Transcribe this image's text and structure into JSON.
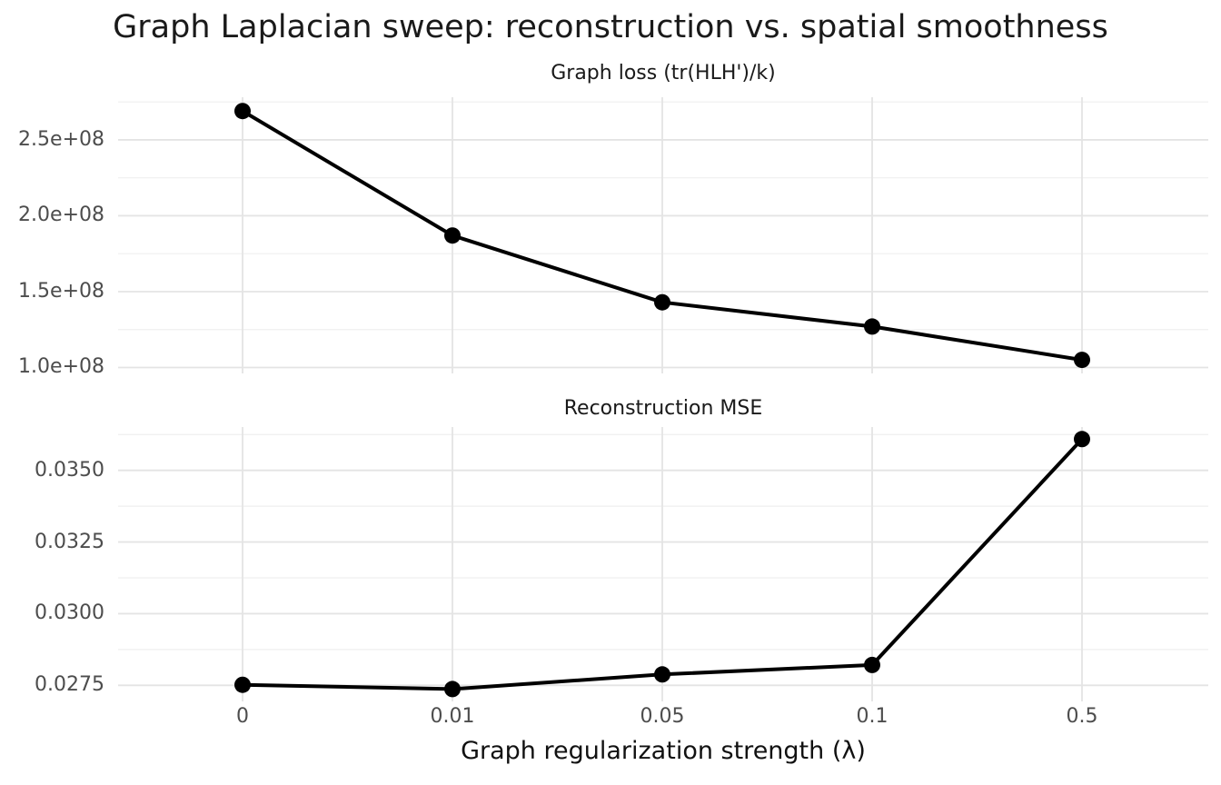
{
  "title": "Graph Laplacian sweep: reconstruction vs. spatial smoothness",
  "x_axis": {
    "title": "Graph regularization strength (λ)",
    "tick_labels": [
      "0",
      "0.01",
      "0.05",
      "0.1",
      "0.5"
    ]
  },
  "style": {
    "line_color": "#000000",
    "point_color": "#000000",
    "grid_major_color": "#e4e4e4",
    "grid_minor_color": "#efefef",
    "tick_text_color": "#4d4d4d",
    "title_text_color": "#1a1a1a",
    "background": "#ffffff"
  },
  "chart_data": [
    {
      "type": "line",
      "panel_title": "Graph loss (tr(HLH')/k)",
      "xlabel": "Graph regularization strength (λ)",
      "categories": [
        "0",
        "0.01",
        "0.05",
        "0.1",
        "0.5"
      ],
      "values": [
        269000000,
        187000000,
        143000000,
        127000000,
        105000000
      ],
      "y_ticks": [
        100000000,
        150000000,
        200000000,
        250000000
      ],
      "y_tick_labels": [
        "1.0e+08",
        "1.5e+08",
        "2.0e+08",
        "2.5e+08"
      ],
      "y_minor_ticks": [
        125000000,
        175000000,
        225000000,
        275000000
      ],
      "ylim": [
        96100000,
        278100000
      ],
      "grid": true,
      "legend": false
    },
    {
      "type": "line",
      "panel_title": "Reconstruction MSE",
      "xlabel": "Graph regularization strength (λ)",
      "categories": [
        "0",
        "0.01",
        "0.05",
        "0.1",
        "0.5"
      ],
      "values": [
        0.02752,
        0.02737,
        0.02788,
        0.02821,
        0.03609
      ],
      "y_ticks": [
        0.0275,
        0.03,
        0.0325,
        0.035
      ],
      "y_tick_labels": [
        "0.0275",
        "0.0300",
        "0.0325",
        "0.0350"
      ],
      "y_minor_ticks": [
        0.02875,
        0.03125,
        0.03375,
        0.03625
      ],
      "ylim": [
        0.026939,
        0.036512
      ],
      "grid": true,
      "legend": false
    }
  ]
}
